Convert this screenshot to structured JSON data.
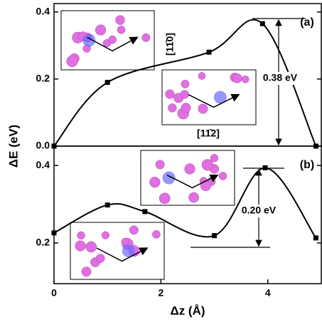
{
  "chart_data": [
    {
      "type": "line",
      "label": "(a)",
      "y_label": "ΔE (eV)",
      "x": [
        0,
        1,
        2.9,
        3.9,
        4.9
      ],
      "series": [
        {
          "color": "#000000",
          "values": [
            0,
            0.19,
            0.28,
            0.365,
            0.0
          ]
        }
      ],
      "xlim": [
        0,
        5
      ],
      "ylim": [
        0,
        0.425
      ],
      "yticks": [
        {
          "value": 0,
          "label": "0.0"
        },
        0.2,
        0.4
      ],
      "annotations": [
        "0.38 eV",
        "[11̄0]",
        "[11̄2]"
      ]
    },
    {
      "type": "line",
      "label": "(b)",
      "x_label": "Δz (Å)",
      "x": [
        0,
        1,
        1.7,
        3.0,
        3.95,
        4.9
      ],
      "series": [
        {
          "color": "#000000",
          "values": [
            0.226,
            0.298,
            0.281,
            0.219,
            0.394,
            0.213
          ]
        }
      ],
      "xlim": [
        0,
        5
      ],
      "ylim": [
        0.095,
        0.45
      ],
      "xticks": [
        0,
        2,
        4
      ],
      "yticks": [
        0.2,
        0.4
      ],
      "annotations": [
        "0.20 eV"
      ]
    }
  ]
}
